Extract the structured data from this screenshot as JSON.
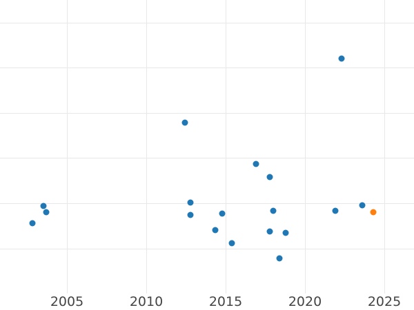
{
  "chart_data": {
    "type": "scatter",
    "title": "",
    "xlabel": "",
    "ylabel": "",
    "grid": "on",
    "legend": "none",
    "x_domain": [
      2000.78,
      2026.87
    ],
    "y_domain": [
      0,
      6.5
    ],
    "x_ticks": [
      {
        "value": 2005,
        "label": "2005"
      },
      {
        "value": 2010,
        "label": "2010"
      },
      {
        "value": 2015,
        "label": "2015"
      },
      {
        "value": 2020,
        "label": "2020"
      },
      {
        "value": 2025,
        "label": "2025"
      }
    ],
    "y_gridline_values": [
      1,
      2,
      3,
      4,
      5,
      6
    ],
    "y_tick_labels_visible": false,
    "series": [
      {
        "name": "main",
        "color": "#1f77b4",
        "points": [
          [
            2002.8,
            1.56
          ],
          [
            2003.5,
            1.94
          ],
          [
            2003.7,
            1.8
          ],
          [
            2012.45,
            3.78
          ],
          [
            2012.8,
            2.02
          ],
          [
            2012.8,
            1.74
          ],
          [
            2014.35,
            1.4
          ],
          [
            2014.8,
            1.77
          ],
          [
            2015.4,
            1.11
          ],
          [
            2016.9,
            2.87
          ],
          [
            2017.8,
            2.58
          ],
          [
            2017.8,
            1.38
          ],
          [
            2018.0,
            1.83
          ],
          [
            2018.4,
            0.78
          ],
          [
            2018.8,
            1.34
          ],
          [
            2021.9,
            1.83
          ],
          [
            2022.3,
            5.2
          ],
          [
            2023.6,
            1.96
          ]
        ]
      },
      {
        "name": "highlight",
        "color": "#ff7f0e",
        "points": [
          [
            2024.3,
            1.8
          ]
        ]
      }
    ],
    "colors": {
      "grid": "#e8e8e8",
      "tick_label": "#444444",
      "background": "#ffffff"
    }
  }
}
